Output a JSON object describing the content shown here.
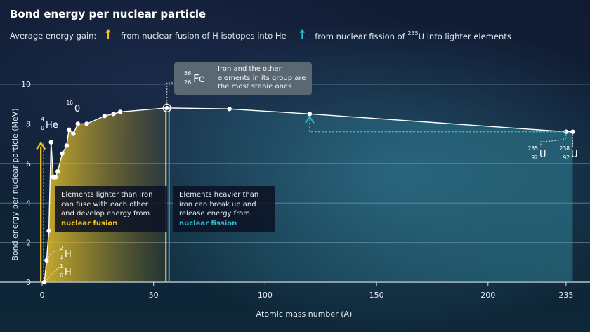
{
  "title": "Bond energy per nuclear particle",
  "legend": {
    "lead": "Average energy gain:",
    "fusion_text": "from nuclear fusion of H isotopes into He",
    "fission_text_pre": "from nuclear fission of",
    "fission_sup": "235",
    "fission_text_post": "U into lighter elements",
    "fusion_arrow_color": "#f2c522",
    "fission_arrow_color": "#2fb8c9"
  },
  "fe_note": {
    "mass": "56",
    "z": "26",
    "symbol": "Fe",
    "text": "Iron and the other elements in its group are the most stable ones"
  },
  "fusion_box": {
    "text": "Elements lighter than iron can fuse with each other and develop energy from",
    "highlight": "nuclear fusion",
    "highlight_color": "#f2c522"
  },
  "fission_box": {
    "text": "Elements heavier than iron can break up and release energy from",
    "highlight": "nuclear fission",
    "highlight_color": "#2fb8c9"
  },
  "element_labels": {
    "H1": {
      "mass": "1",
      "z": "0",
      "symbol": "H"
    },
    "H2": {
      "mass": "2",
      "z": "1",
      "symbol": "H"
    },
    "He": {
      "mass": "4",
      "z": "0",
      "symbol": "He"
    },
    "O": {
      "mass": "16",
      "z": "",
      "symbol": "0"
    },
    "U235": {
      "mass": "235",
      "z": "92",
      "symbol": "U"
    },
    "U238": {
      "mass": "238",
      "z": "92",
      "symbol": "U"
    }
  },
  "chart_data": {
    "type": "line",
    "title": "Bond energy per nuclear particle",
    "xlabel": "Atomic mass number (A)",
    "ylabel": "Bond energy per nuclear particle (MeV)",
    "xlim": [
      -5,
      240
    ],
    "ylim": [
      0,
      10
    ],
    "x_ticks": [
      0,
      50,
      100,
      150,
      200,
      235
    ],
    "y_ticks": [
      0,
      2,
      4,
      6,
      8,
      10
    ],
    "grid": true,
    "series": [
      {
        "x": [
          1,
          2,
          3,
          4,
          5,
          6,
          7,
          9,
          11,
          12,
          14,
          16,
          20,
          28,
          32,
          35,
          56,
          84,
          120,
          235,
          238
        ],
        "values": [
          0,
          1.1,
          2.6,
          7.07,
          5.3,
          5.3,
          5.6,
          6.5,
          6.9,
          7.7,
          7.5,
          8.0,
          8.0,
          8.4,
          8.5,
          8.6,
          8.8,
          8.75,
          8.5,
          7.6,
          7.6
        ]
      }
    ],
    "highlight": {
      "iron_x": 56,
      "iron_y": 8.8,
      "fusion_gain_x": 1,
      "fusion_gain_from": 0,
      "fusion_gain_to": 7.07,
      "fission_gain_x": 120,
      "fission_gain_from": 7.6,
      "fission_gain_to": 8.5
    }
  }
}
